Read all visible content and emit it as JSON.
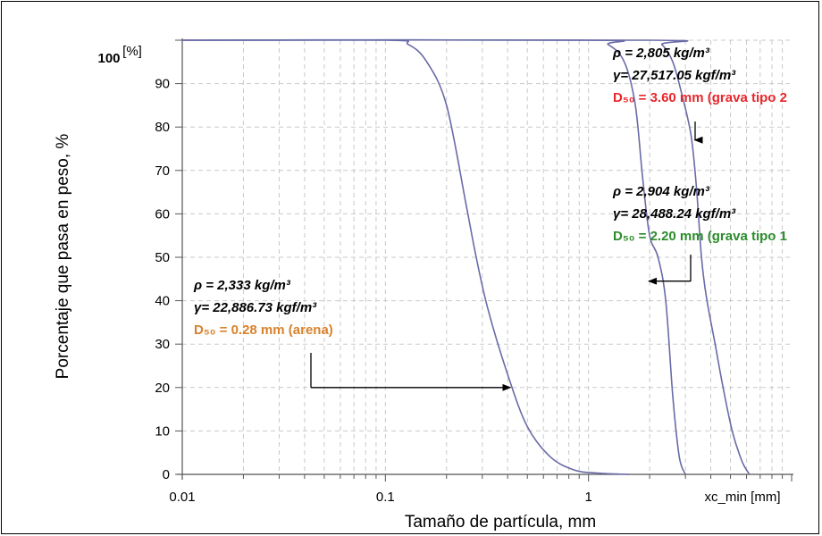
{
  "chart_data": {
    "type": "line",
    "xlabel": "Tamaño de partícula, mm",
    "ylabel": "Porcentaje que pasa en peso, %",
    "x_scale": "log",
    "xlim": [
      0.01,
      10
    ],
    "ylim": [
      0,
      100
    ],
    "x_ticks": [
      {
        "value": 0.01,
        "label": "0.01"
      },
      {
        "value": 0.1,
        "label": "0.1"
      },
      {
        "value": 1,
        "label": "1"
      }
    ],
    "x_axis_end_label": "xc_min [mm]",
    "y_ticks": [
      {
        "value": 0,
        "label": "0"
      },
      {
        "value": 10,
        "label": "10"
      },
      {
        "value": 20,
        "label": "20"
      },
      {
        "value": 30,
        "label": "30"
      },
      {
        "value": 40,
        "label": "40"
      },
      {
        "value": 50,
        "label": "50"
      },
      {
        "value": 60,
        "label": "60"
      },
      {
        "value": 70,
        "label": "70"
      },
      {
        "value": 80,
        "label": "80"
      },
      {
        "value": 90,
        "label": "90"
      }
    ],
    "y_top_label": "100",
    "y_unit_label": "[%]",
    "grid": true,
    "series_color": "#6a6aa8",
    "series": [
      {
        "x": [
          0.01,
          0.1,
          0.13,
          0.16,
          0.2,
          0.25,
          0.28,
          0.32,
          0.4,
          0.5,
          0.65,
          0.85,
          1.1,
          1.6
        ],
        "values": [
          100,
          100,
          99,
          95,
          85,
          62,
          50,
          38,
          23,
          11,
          4,
          1,
          0.3,
          0
        ]
      },
      {
        "x": [
          0.01,
          1,
          1.25,
          1.5,
          1.7,
          1.85,
          2.0,
          2.2,
          2.4,
          2.6,
          2.8,
          3.0
        ],
        "values": [
          100,
          100,
          99,
          95,
          85,
          68,
          55,
          50,
          40,
          18,
          4,
          0
        ]
      },
      {
        "x": [
          0.01,
          2.0,
          2.3,
          2.6,
          2.9,
          3.2,
          3.4,
          3.6,
          3.8,
          4.2,
          4.6,
          5.1,
          5.7,
          6.2
        ],
        "values": [
          100,
          100,
          99,
          95,
          87,
          78,
          66,
          50,
          41,
          30,
          20,
          10,
          3,
          0
        ]
      }
    ],
    "annotations": [
      {
        "rho": "ρ = 2,805 kg/m³",
        "gamma": "γ=  27,517.05 kgf/m³",
        "d50": "D₅₀ = 3.60 mm (grava tipo 2",
        "d50_color": "#e8262b",
        "arrow_to": {
          "x": 3.2,
          "y": 77
        }
      },
      {
        "rho": "ρ = 2,904 kg/m³",
        "gamma": "γ=  28,488.24 kgf/m³",
        "d50": "D₅₀ = 2.20 mm (grava tipo 1",
        "d50_color": "#2c8c2c",
        "arrow_to": {
          "x": 1.9,
          "y": 44.5
        }
      },
      {
        "rho": "ρ = 2,333 kg/m³",
        "gamma": "γ= 22,886.73 kgf/m³",
        "d50": "D₅₀ = 0.28 mm (arena)",
        "d50_color": "#d9822b",
        "arrow_to": {
          "x": 0.43,
          "y": 20
        }
      }
    ]
  }
}
